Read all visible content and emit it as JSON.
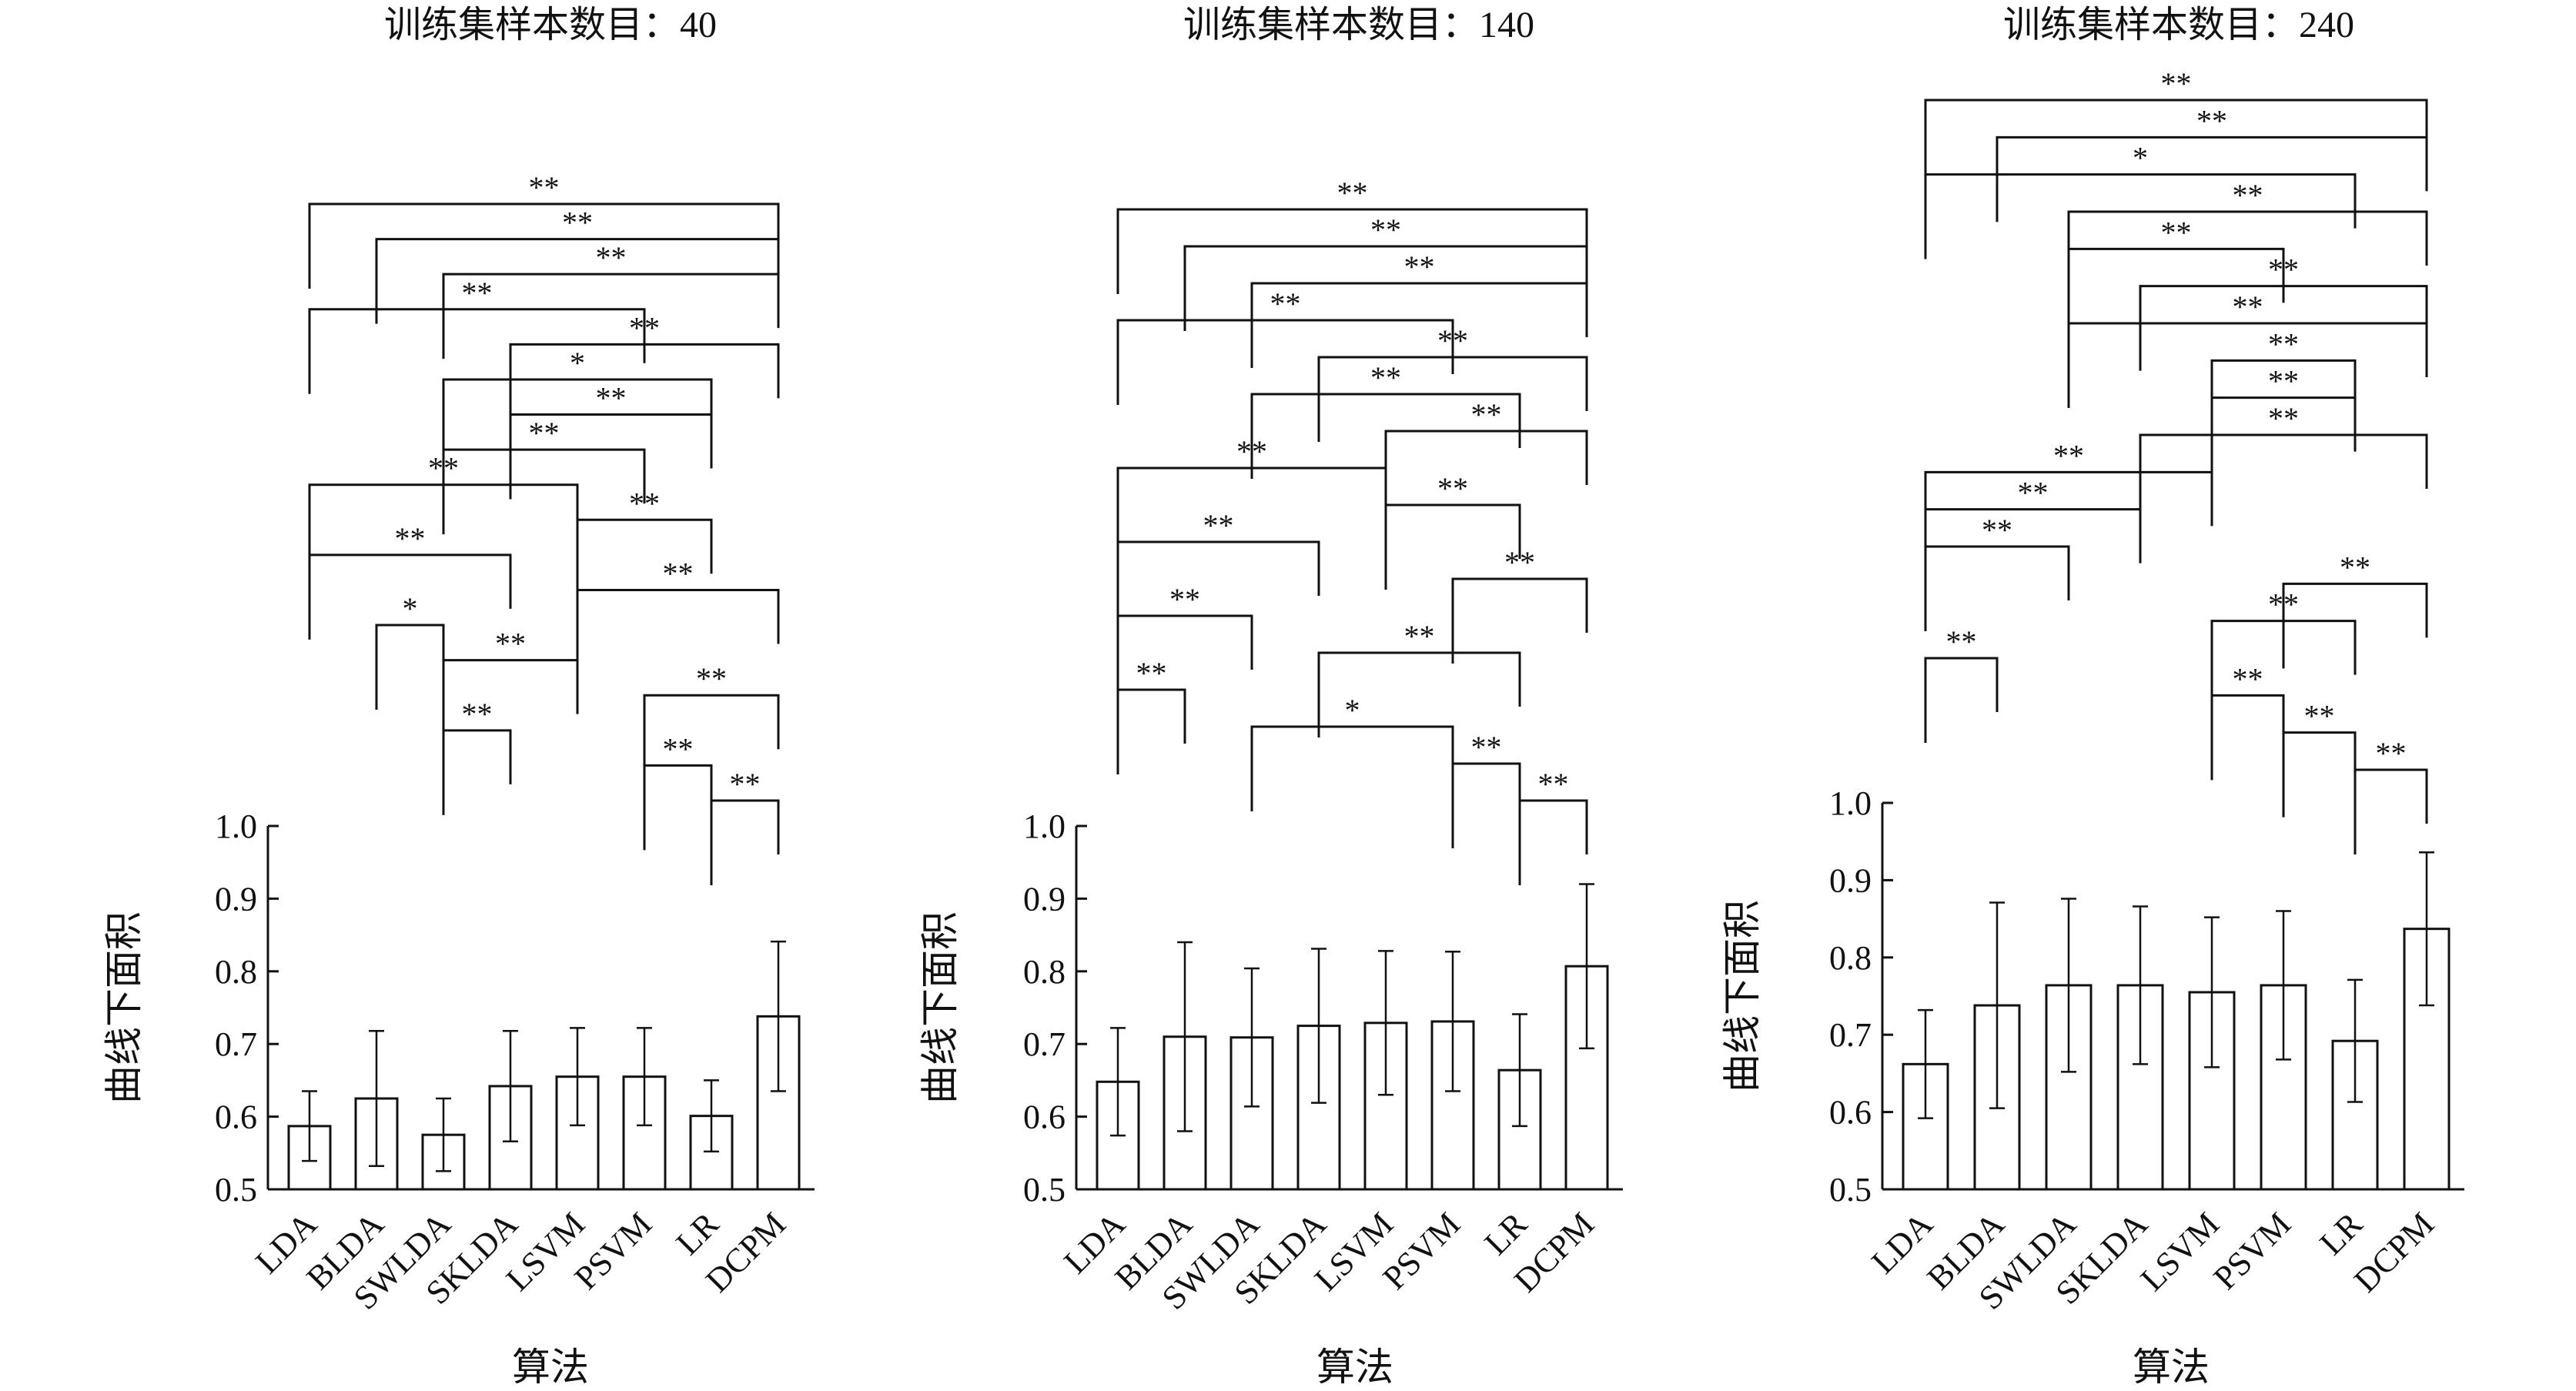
{
  "chart_data": [
    {
      "type": "bar",
      "title": "训练集样本数目：40",
      "xlabel": "算法",
      "ylabel": "曲线下面积",
      "ylim": [
        0.5,
        1.0
      ],
      "yticks": [
        "0.5",
        "0.6",
        "0.7",
        "0.8",
        "0.9",
        "1.0"
      ],
      "grid": false,
      "categories": [
        "LDA",
        "BLDA",
        "SWLDA",
        "SKLDA",
        "LSVM",
        "PSVM",
        "LR",
        "DCPM"
      ],
      "values": [
        0.587,
        0.625,
        0.575,
        0.642,
        0.655,
        0.655,
        0.601,
        0.738
      ],
      "error": [
        0.048,
        0.093,
        0.05,
        0.076,
        0.067,
        0.067,
        0.049,
        0.103
      ],
      "significance": [
        {
          "a": 0,
          "b": 7,
          "label": "**"
        },
        {
          "a": 1,
          "b": 7,
          "label": "**"
        },
        {
          "a": 2,
          "b": 7,
          "label": "**"
        },
        {
          "a": 0,
          "b": 5,
          "label": "**"
        },
        {
          "a": 3,
          "b": 7,
          "label": "**"
        },
        {
          "a": 2,
          "b": 6,
          "label": "*"
        },
        {
          "a": 3,
          "b": 6,
          "label": "**"
        },
        {
          "a": 2,
          "b": 5,
          "label": "**"
        },
        {
          "a": 0,
          "b": 4,
          "label": "**"
        },
        {
          "a": 4,
          "b": 6,
          "label": "**"
        },
        {
          "a": 0,
          "b": 3,
          "label": "**"
        },
        {
          "a": 4,
          "b": 7,
          "label": "**"
        },
        {
          "a": 1,
          "b": 2,
          "label": "*"
        },
        {
          "a": 2,
          "b": 4,
          "label": "**"
        },
        {
          "a": 5,
          "b": 7,
          "label": "**"
        },
        {
          "a": 2,
          "b": 3,
          "label": "**"
        },
        {
          "a": 5,
          "b": 6,
          "label": "**"
        },
        {
          "a": 6,
          "b": 7,
          "label": "**"
        }
      ]
    },
    {
      "type": "bar",
      "title": "训练集样本数目：140",
      "xlabel": "算法",
      "ylabel": "曲线下面积",
      "ylim": [
        0.5,
        1.0
      ],
      "yticks": [
        "0.5",
        "0.6",
        "0.7",
        "0.8",
        "0.9",
        "1.0"
      ],
      "grid": false,
      "categories": [
        "LDA",
        "BLDA",
        "SWLDA",
        "SKLDA",
        "LSVM",
        "PSVM",
        "LR",
        "DCPM"
      ],
      "values": [
        0.648,
        0.71,
        0.709,
        0.725,
        0.729,
        0.731,
        0.664,
        0.807
      ],
      "error": [
        0.074,
        0.13,
        0.095,
        0.106,
        0.099,
        0.096,
        0.077,
        0.113
      ],
      "significance": [
        {
          "a": 0,
          "b": 7,
          "label": "**"
        },
        {
          "a": 1,
          "b": 7,
          "label": "**"
        },
        {
          "a": 2,
          "b": 7,
          "label": "**"
        },
        {
          "a": 0,
          "b": 5,
          "label": "**"
        },
        {
          "a": 3,
          "b": 7,
          "label": "**"
        },
        {
          "a": 2,
          "b": 6,
          "label": "**"
        },
        {
          "a": 4,
          "b": 7,
          "label": "**"
        },
        {
          "a": 0,
          "b": 4,
          "label": "**"
        },
        {
          "a": 4,
          "b": 6,
          "label": "**"
        },
        {
          "a": 0,
          "b": 3,
          "label": "**"
        },
        {
          "a": 5,
          "b": 7,
          "label": "**"
        },
        {
          "a": 0,
          "b": 2,
          "label": "**"
        },
        {
          "a": 3,
          "b": 6,
          "label": "**"
        },
        {
          "a": 0,
          "b": 1,
          "label": "**"
        },
        {
          "a": 2,
          "b": 5,
          "label": "*"
        },
        {
          "a": 5,
          "b": 6,
          "label": "**"
        },
        {
          "a": 6,
          "b": 7,
          "label": "**"
        }
      ]
    },
    {
      "type": "bar",
      "title": "训练集样本数目：240",
      "xlabel": "算法",
      "ylabel": "曲线下面积",
      "ylim": [
        0.5,
        1.0
      ],
      "yticks": [
        "0.5",
        "0.6",
        "0.7",
        "0.8",
        "0.9",
        "1.0"
      ],
      "grid": false,
      "categories": [
        "LDA",
        "BLDA",
        "SWLDA",
        "SKLDA",
        "LSVM",
        "PSVM",
        "LR",
        "DCPM"
      ],
      "values": [
        0.662,
        0.738,
        0.764,
        0.764,
        0.755,
        0.764,
        0.692,
        0.837
      ],
      "error": [
        0.07,
        0.133,
        0.112,
        0.102,
        0.097,
        0.096,
        0.079,
        0.099
      ],
      "significance": [
        {
          "a": 0,
          "b": 7,
          "label": "**"
        },
        {
          "a": 1,
          "b": 7,
          "label": "**"
        },
        {
          "a": 0,
          "b": 6,
          "label": "*"
        },
        {
          "a": 2,
          "b": 7,
          "label": "**"
        },
        {
          "a": 2,
          "b": 5,
          "label": "**"
        },
        {
          "a": 3,
          "b": 7,
          "label": "**"
        },
        {
          "a": 2,
          "b": 7,
          "label": "**"
        },
        {
          "a": 4,
          "b": 6,
          "label": "**"
        },
        {
          "a": 4,
          "b": 6,
          "label": "**"
        },
        {
          "a": 3,
          "b": 7,
          "label": "**"
        },
        {
          "a": 0,
          "b": 4,
          "label": "**"
        },
        {
          "a": 0,
          "b": 3,
          "label": "**"
        },
        {
          "a": 0,
          "b": 2,
          "label": "**"
        },
        {
          "a": 5,
          "b": 7,
          "label": "**"
        },
        {
          "a": 4,
          "b": 6,
          "label": "**"
        },
        {
          "a": 0,
          "b": 1,
          "label": "**"
        },
        {
          "a": 4,
          "b": 5,
          "label": "**"
        },
        {
          "a": 5,
          "b": 6,
          "label": "**"
        },
        {
          "a": 6,
          "b": 7,
          "label": "**"
        }
      ]
    }
  ]
}
